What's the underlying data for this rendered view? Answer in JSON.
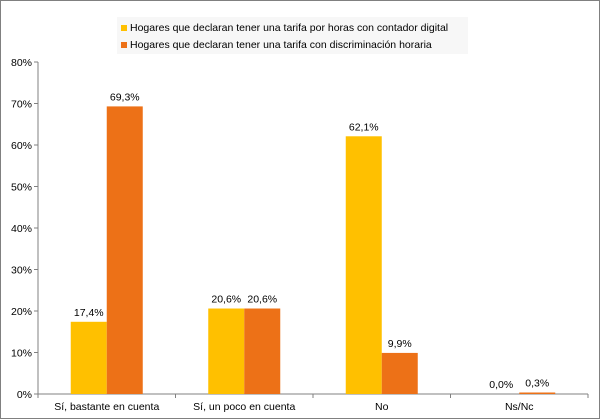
{
  "chart_data": {
    "type": "bar",
    "title": "",
    "xlabel": "",
    "ylabel": "",
    "categories": [
      "Sí, bastante en cuenta",
      "Sí, un poco en cuenta",
      "No",
      "Ns/Nc"
    ],
    "series": [
      {
        "name": "Hogares que declaran tener una tarifa por horas con contador digital",
        "color": "#FFC000",
        "values": [
          17.4,
          20.6,
          62.1,
          0.0
        ],
        "labels": [
          "17,4%",
          "20,6%",
          "62,1%",
          "0,0%"
        ]
      },
      {
        "name": "Hogares que declaran tener una tarifa con discriminación horaria",
        "color": "#ED7117",
        "values": [
          69.3,
          20.6,
          9.9,
          0.3
        ],
        "labels": [
          "69,3%",
          "20,6%",
          "9,9%",
          "0,3%"
        ]
      }
    ],
    "ylim": [
      0,
      80
    ],
    "yticks": [
      "0%",
      "10%",
      "20%",
      "30%",
      "40%",
      "50%",
      "60%",
      "70%",
      "80%"
    ],
    "grid": false,
    "legend": "top-center"
  }
}
